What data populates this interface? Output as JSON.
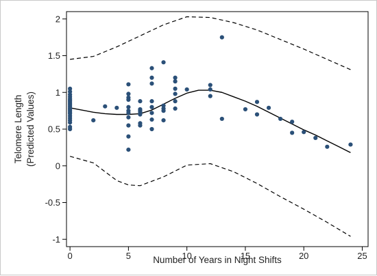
{
  "chart_data": {
    "type": "scatter",
    "title": "",
    "xlabel": "Number of Years in Night Shifts",
    "ylabel_lines": [
      "Telomere Length",
      "(Predicted Values)"
    ],
    "xlim": [
      -0.3,
      25.5
    ],
    "ylim": [
      -1.1,
      2.1
    ],
    "x_ticks": [
      0,
      5,
      10,
      15,
      20,
      25
    ],
    "y_ticks": [
      -1,
      -0.5,
      0,
      0.5,
      1,
      1.5,
      2
    ],
    "x_tick_labels": [
      "0",
      "5",
      "10",
      "15",
      "20",
      "25"
    ],
    "y_tick_labels": [
      "-1",
      "-0.5",
      "0",
      "0.5",
      "1",
      "1.5",
      "2"
    ],
    "grid": false,
    "legend": "none",
    "colors": {
      "points": "#2b5078",
      "fit": "#000000",
      "ci": "#000000",
      "frame": "#000000"
    },
    "series": [
      {
        "kind": "points",
        "x": [
          0,
          0,
          0,
          0,
          0,
          0,
          0,
          0,
          0,
          0,
          0,
          0,
          0,
          0,
          0,
          0,
          0,
          0,
          0,
          0,
          0,
          2,
          3,
          4,
          5,
          5,
          5,
          5,
          5,
          5,
          5,
          5,
          5,
          5,
          5,
          6,
          6,
          6,
          6,
          6,
          6,
          6,
          7,
          7,
          7,
          7,
          7,
          7,
          7,
          7,
          8,
          8,
          8,
          8,
          8,
          9,
          9,
          9,
          9,
          9,
          9,
          10,
          12,
          12,
          12,
          13,
          13,
          15,
          16,
          16,
          17,
          18,
          19,
          19,
          20,
          21,
          22,
          24
        ],
        "y": [
          1.05,
          1.01,
          0.97,
          0.94,
          0.91,
          0.89,
          0.87,
          0.85,
          0.83,
          0.81,
          0.79,
          0.77,
          0.75,
          0.73,
          0.71,
          0.68,
          0.65,
          0.62,
          0.59,
          0.53,
          0.5,
          0.62,
          0.81,
          0.79,
          1.11,
          0.98,
          0.93,
          0.9,
          0.8,
          0.75,
          0.72,
          0.66,
          0.55,
          0.4,
          0.22,
          0.88,
          0.77,
          0.75,
          0.73,
          0.7,
          0.58,
          0.55,
          1.33,
          1.2,
          1.12,
          0.88,
          0.8,
          0.72,
          0.63,
          0.5,
          1.41,
          0.82,
          0.78,
          0.75,
          0.62,
          1.2,
          1.15,
          1.05,
          0.98,
          0.88,
          0.78,
          1.04,
          1.1,
          1.04,
          0.95,
          1.75,
          0.64,
          0.77,
          0.87,
          0.7,
          0.79,
          0.64,
          0.6,
          0.45,
          0.46,
          0.38,
          0.26,
          0.29
        ]
      },
      {
        "kind": "fit",
        "x": [
          0,
          1,
          2,
          3,
          4,
          5,
          6,
          7,
          8,
          9,
          10,
          11,
          12,
          13,
          14,
          15,
          16,
          17,
          18,
          19,
          20,
          21,
          22,
          23,
          24
        ],
        "y": [
          0.79,
          0.76,
          0.73,
          0.71,
          0.7,
          0.7,
          0.71,
          0.76,
          0.84,
          0.92,
          0.99,
          1.03,
          1.03,
          1.0,
          0.94,
          0.88,
          0.81,
          0.73,
          0.65,
          0.57,
          0.49,
          0.42,
          0.34,
          0.26,
          0.18
        ]
      },
      {
        "kind": "ci-upper",
        "x": [
          0,
          2,
          4,
          6,
          8,
          10,
          12,
          14,
          16,
          18,
          20,
          22,
          24
        ],
        "y": [
          1.45,
          1.49,
          1.62,
          1.77,
          1.92,
          2.03,
          2.02,
          1.95,
          1.85,
          1.72,
          1.59,
          1.45,
          1.31
        ]
      },
      {
        "kind": "ci-lower",
        "x": [
          0,
          2,
          4,
          5,
          6,
          8,
          10,
          12,
          14,
          16,
          18,
          20,
          22,
          24
        ],
        "y": [
          0.13,
          0.04,
          -0.2,
          -0.26,
          -0.27,
          -0.15,
          0.01,
          0.03,
          -0.08,
          -0.24,
          -0.42,
          -0.59,
          -0.77,
          -0.96
        ]
      }
    ]
  }
}
